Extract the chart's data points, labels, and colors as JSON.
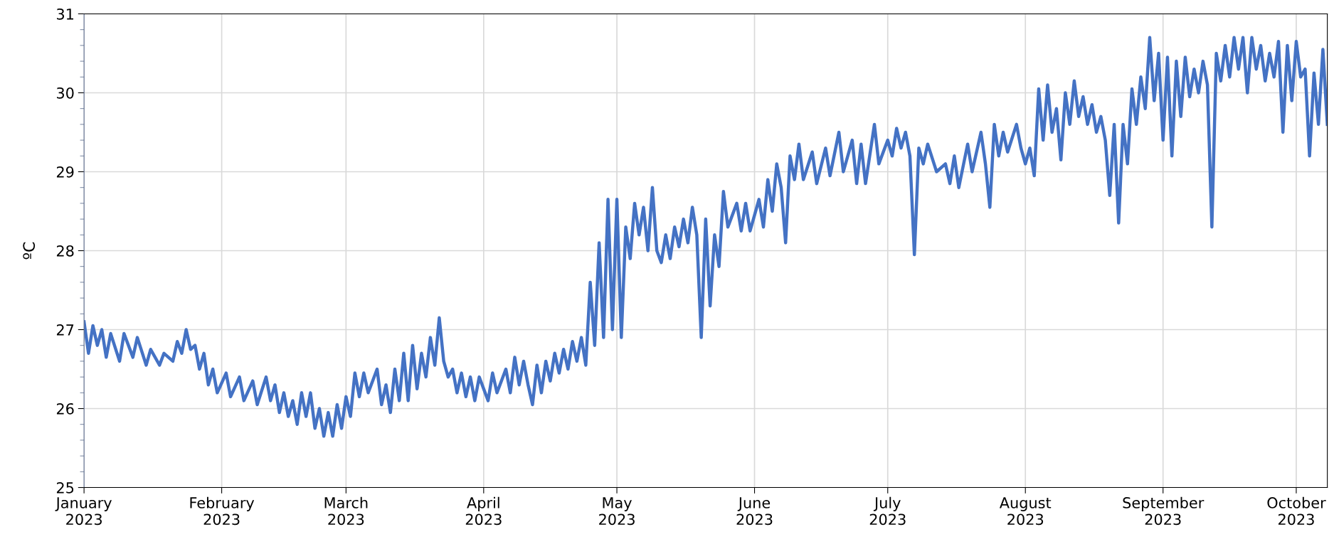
{
  "chart_data": {
    "type": "line",
    "ylabel": "ºC",
    "color": "#4472c4",
    "grid": true,
    "marker": "none",
    "line_style": "solid",
    "xlim": [
      "2023-01-01",
      "2023-10-08"
    ],
    "ylim": [
      25,
      31
    ],
    "yticks": [
      25,
      26,
      27,
      28,
      29,
      30,
      31
    ],
    "xticks": [
      {
        "value": "2023-01-01",
        "label": "January\n2023"
      },
      {
        "value": "2023-02-01",
        "label": "February\n2023"
      },
      {
        "value": "2023-03-01",
        "label": "March\n2023"
      },
      {
        "value": "2023-04-01",
        "label": "April\n2023"
      },
      {
        "value": "2023-05-01",
        "label": "May\n2023"
      },
      {
        "value": "2023-06-01",
        "label": "June\n2023"
      },
      {
        "value": "2023-07-01",
        "label": "July\n2023"
      },
      {
        "value": "2023-08-01",
        "label": "August\n2023"
      },
      {
        "value": "2023-09-01",
        "label": "September\n2023"
      },
      {
        "value": "2023-10-01",
        "label": "October\n2023"
      }
    ],
    "x": [
      "2023-01-01",
      "2023-01-02",
      "2023-01-03",
      "2023-01-04",
      "2023-01-05",
      "2023-01-06",
      "2023-01-07",
      "2023-01-09",
      "2023-01-10",
      "2023-01-12",
      "2023-01-13",
      "2023-01-15",
      "2023-01-16",
      "2023-01-18",
      "2023-01-19",
      "2023-01-21",
      "2023-01-22",
      "2023-01-23",
      "2023-01-24",
      "2023-01-25",
      "2023-01-26",
      "2023-01-27",
      "2023-01-28",
      "2023-01-29",
      "2023-01-30",
      "2023-01-31",
      "2023-02-02",
      "2023-02-03",
      "2023-02-05",
      "2023-02-06",
      "2023-02-08",
      "2023-02-09",
      "2023-02-11",
      "2023-02-12",
      "2023-02-13",
      "2023-02-14",
      "2023-02-15",
      "2023-02-16",
      "2023-02-17",
      "2023-02-18",
      "2023-02-19",
      "2023-02-20",
      "2023-02-21",
      "2023-02-22",
      "2023-02-23",
      "2023-02-24",
      "2023-02-25",
      "2023-02-26",
      "2023-02-27",
      "2023-02-28",
      "2023-03-01",
      "2023-03-02",
      "2023-03-03",
      "2023-03-04",
      "2023-03-05",
      "2023-03-06",
      "2023-03-08",
      "2023-03-09",
      "2023-03-10",
      "2023-03-11",
      "2023-03-12",
      "2023-03-13",
      "2023-03-14",
      "2023-03-15",
      "2023-03-16",
      "2023-03-17",
      "2023-03-18",
      "2023-03-19",
      "2023-03-20",
      "2023-03-21",
      "2023-03-22",
      "2023-03-23",
      "2023-03-24",
      "2023-03-25",
      "2023-03-26",
      "2023-03-27",
      "2023-03-28",
      "2023-03-29",
      "2023-03-30",
      "2023-03-31",
      "2023-04-02",
      "2023-04-03",
      "2023-04-04",
      "2023-04-06",
      "2023-04-07",
      "2023-04-08",
      "2023-04-09",
      "2023-04-10",
      "2023-04-11",
      "2023-04-12",
      "2023-04-13",
      "2023-04-14",
      "2023-04-15",
      "2023-04-16",
      "2023-04-17",
      "2023-04-18",
      "2023-04-19",
      "2023-04-20",
      "2023-04-21",
      "2023-04-22",
      "2023-04-23",
      "2023-04-24",
      "2023-04-25",
      "2023-04-26",
      "2023-04-27",
      "2023-04-28",
      "2023-04-29",
      "2023-04-30",
      "2023-05-01",
      "2023-05-02",
      "2023-05-03",
      "2023-05-04",
      "2023-05-05",
      "2023-05-06",
      "2023-05-07",
      "2023-05-08",
      "2023-05-09",
      "2023-05-10",
      "2023-05-11",
      "2023-05-12",
      "2023-05-13",
      "2023-05-14",
      "2023-05-15",
      "2023-05-16",
      "2023-05-17",
      "2023-05-18",
      "2023-05-19",
      "2023-05-20",
      "2023-05-21",
      "2023-05-22",
      "2023-05-23",
      "2023-05-24",
      "2023-05-25",
      "2023-05-26",
      "2023-05-28",
      "2023-05-29",
      "2023-05-30",
      "2023-05-31",
      "2023-06-02",
      "2023-06-03",
      "2023-06-04",
      "2023-06-05",
      "2023-06-06",
      "2023-06-07",
      "2023-06-08",
      "2023-06-09",
      "2023-06-10",
      "2023-06-11",
      "2023-06-12",
      "2023-06-14",
      "2023-06-15",
      "2023-06-17",
      "2023-06-18",
      "2023-06-20",
      "2023-06-21",
      "2023-06-23",
      "2023-06-24",
      "2023-06-25",
      "2023-06-26",
      "2023-06-28",
      "2023-06-29",
      "2023-07-01",
      "2023-07-02",
      "2023-07-03",
      "2023-07-04",
      "2023-07-05",
      "2023-07-06",
      "2023-07-07",
      "2023-07-08",
      "2023-07-09",
      "2023-07-10",
      "2023-07-12",
      "2023-07-14",
      "2023-07-15",
      "2023-07-16",
      "2023-07-17",
      "2023-07-19",
      "2023-07-20",
      "2023-07-22",
      "2023-07-23",
      "2023-07-24",
      "2023-07-25",
      "2023-07-26",
      "2023-07-27",
      "2023-07-28",
      "2023-07-30",
      "2023-07-31",
      "2023-08-01",
      "2023-08-02",
      "2023-08-03",
      "2023-08-04",
      "2023-08-05",
      "2023-08-06",
      "2023-08-07",
      "2023-08-08",
      "2023-08-09",
      "2023-08-10",
      "2023-08-11",
      "2023-08-12",
      "2023-08-13",
      "2023-08-14",
      "2023-08-15",
      "2023-08-16",
      "2023-08-17",
      "2023-08-18",
      "2023-08-19",
      "2023-08-20",
      "2023-08-21",
      "2023-08-22",
      "2023-08-23",
      "2023-08-24",
      "2023-08-25",
      "2023-08-26",
      "2023-08-27",
      "2023-08-28",
      "2023-08-29",
      "2023-08-30",
      "2023-08-31",
      "2023-09-01",
      "2023-09-02",
      "2023-09-03",
      "2023-09-04",
      "2023-09-05",
      "2023-09-06",
      "2023-09-07",
      "2023-09-08",
      "2023-09-09",
      "2023-09-10",
      "2023-09-11",
      "2023-09-12",
      "2023-09-13",
      "2023-09-14",
      "2023-09-15",
      "2023-09-16",
      "2023-09-17",
      "2023-09-18",
      "2023-09-19",
      "2023-09-20",
      "2023-09-21",
      "2023-09-22",
      "2023-09-23",
      "2023-09-24",
      "2023-09-25",
      "2023-09-26",
      "2023-09-27",
      "2023-09-28",
      "2023-09-29",
      "2023-09-30",
      "2023-10-01",
      "2023-10-02",
      "2023-10-03",
      "2023-10-04",
      "2023-10-05",
      "2023-10-06",
      "2023-10-07",
      "2023-10-08"
    ],
    "values": [
      27.1,
      26.7,
      27.05,
      26.8,
      27.0,
      26.65,
      26.95,
      26.6,
      26.95,
      26.65,
      26.9,
      26.55,
      26.75,
      26.55,
      26.7,
      26.6,
      26.85,
      26.7,
      27.0,
      26.75,
      26.8,
      26.5,
      26.7,
      26.3,
      26.5,
      26.2,
      26.45,
      26.15,
      26.4,
      26.1,
      26.35,
      26.05,
      26.4,
      26.1,
      26.3,
      25.95,
      26.2,
      25.9,
      26.1,
      25.8,
      26.2,
      25.9,
      26.2,
      25.75,
      26.0,
      25.65,
      25.95,
      25.65,
      26.05,
      25.75,
      26.15,
      25.9,
      26.45,
      26.15,
      26.45,
      26.2,
      26.5,
      26.05,
      26.3,
      25.95,
      26.5,
      26.1,
      26.7,
      26.1,
      26.8,
      26.25,
      26.7,
      26.4,
      26.9,
      26.55,
      27.15,
      26.6,
      26.4,
      26.5,
      26.2,
      26.45,
      26.15,
      26.4,
      26.1,
      26.4,
      26.1,
      26.45,
      26.2,
      26.5,
      26.2,
      26.65,
      26.3,
      26.6,
      26.3,
      26.05,
      26.55,
      26.2,
      26.6,
      26.35,
      26.7,
      26.45,
      26.75,
      26.5,
      26.85,
      26.6,
      26.9,
      26.55,
      27.6,
      26.8,
      28.1,
      26.9,
      28.65,
      27.0,
      28.65,
      26.9,
      28.3,
      27.9,
      28.6,
      28.2,
      28.55,
      28.0,
      28.8,
      28.0,
      27.85,
      28.2,
      27.9,
      28.3,
      28.05,
      28.4,
      28.1,
      28.55,
      28.2,
      26.9,
      28.4,
      27.3,
      28.2,
      27.8,
      28.75,
      28.3,
      28.6,
      28.25,
      28.6,
      28.25,
      28.65,
      28.3,
      28.9,
      28.5,
      29.1,
      28.8,
      28.1,
      29.2,
      28.9,
      29.35,
      28.9,
      29.25,
      28.85,
      29.3,
      28.95,
      29.5,
      29.0,
      29.4,
      28.85,
      29.35,
      28.85,
      29.6,
      29.1,
      29.4,
      29.2,
      29.55,
      29.3,
      29.5,
      29.2,
      27.95,
      29.3,
      29.1,
      29.35,
      29.0,
      29.1,
      28.85,
      29.2,
      28.8,
      29.35,
      29.0,
      29.5,
      29.1,
      28.55,
      29.6,
      29.2,
      29.5,
      29.25,
      29.6,
      29.3,
      29.1,
      29.3,
      28.95,
      30.05,
      29.4,
      30.1,
      29.5,
      29.8,
      29.15,
      30.0,
      29.6,
      30.15,
      29.7,
      29.95,
      29.6,
      29.85,
      29.5,
      29.7,
      29.4,
      28.7,
      29.6,
      28.35,
      29.6,
      29.1,
      30.05,
      29.6,
      30.2,
      29.8,
      30.7,
      29.9,
      30.5,
      29.4,
      30.45,
      29.2,
      30.4,
      29.7,
      30.45,
      29.95,
      30.3,
      30.0,
      30.4,
      30.1,
      28.3,
      30.5,
      30.15,
      30.6,
      30.2,
      30.7,
      30.3,
      30.7,
      30.0,
      30.7,
      30.3,
      30.6,
      30.15,
      30.5,
      30.2,
      30.65,
      29.5,
      30.6,
      29.9,
      30.65,
      30.2,
      30.3,
      29.2,
      30.25,
      29.6,
      30.55,
      29.6
    ]
  }
}
